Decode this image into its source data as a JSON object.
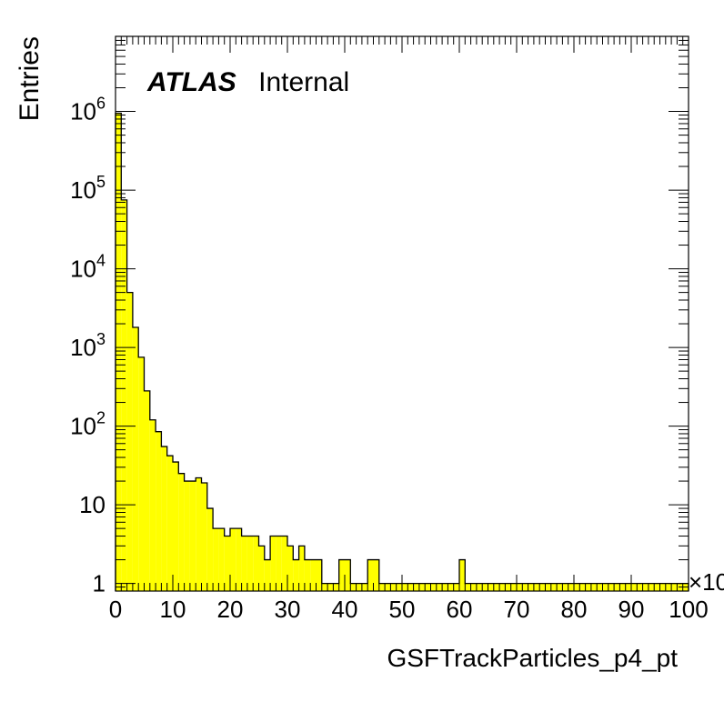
{
  "chart_data": {
    "type": "histogram",
    "xlabel": "GSFTrackParticles_p4_pt",
    "ylabel": "Entries",
    "x_multiplier": "×10",
    "xlim": [
      0,
      100
    ],
    "ylim": [
      0.8,
      9000000
    ],
    "y_scale": "log",
    "bin_width": 1,
    "x_ticks": [
      "0",
      "10",
      "20",
      "30",
      "40",
      "50",
      "60",
      "70",
      "80",
      "90",
      "100"
    ],
    "y_ticks": [
      {
        "base": "1",
        "exp": ""
      },
      {
        "base": "10",
        "exp": ""
      },
      {
        "base": "10",
        "exp": "2"
      },
      {
        "base": "10",
        "exp": "3"
      },
      {
        "base": "10",
        "exp": "4"
      },
      {
        "base": "10",
        "exp": "5"
      },
      {
        "base": "10",
        "exp": "6"
      }
    ],
    "fill_color": "#ffff00",
    "line_color": "#000000",
    "grid": false,
    "values": [
      950000,
      75000,
      5000,
      1800,
      750,
      280,
      120,
      85,
      55,
      42,
      35,
      25,
      20,
      20,
      22,
      19,
      9,
      5,
      5,
      4,
      5,
      5,
      4,
      4,
      4,
      3,
      2,
      4,
      4,
      4,
      3,
      2,
      3,
      2,
      2,
      2,
      1,
      1,
      1,
      2,
      2,
      1,
      1,
      1,
      2,
      2,
      1,
      1,
      1,
      1,
      1,
      1,
      1,
      1,
      1,
      1,
      1,
      1,
      1,
      1,
      2,
      1,
      1,
      1,
      1,
      1,
      1,
      1,
      1,
      1,
      1,
      1,
      1,
      1,
      1,
      1,
      1,
      1,
      1,
      1,
      1,
      1,
      1,
      1,
      1,
      1,
      1,
      1,
      1,
      1,
      1,
      1,
      1,
      1,
      1,
      1,
      1,
      1,
      1,
      1
    ]
  },
  "annotation": {
    "bold": "ATLAS",
    "text": "Internal"
  }
}
